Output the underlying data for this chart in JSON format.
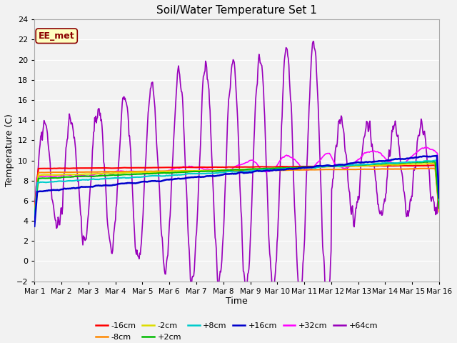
{
  "title": "Soil/Water Temperature Set 1",
  "xlabel": "Time",
  "ylabel": "Temperature (C)",
  "ylim": [
    -2,
    24
  ],
  "yticks": [
    -2,
    0,
    2,
    4,
    6,
    8,
    10,
    12,
    14,
    16,
    18,
    20,
    22,
    24
  ],
  "xtick_labels": [
    "Mar 1",
    "Mar 2",
    "Mar 3",
    "Mar 4",
    "Mar 5",
    "Mar 6",
    "Mar 7",
    "Mar 8",
    "Mar 9",
    "Mar 10",
    "Mar 11",
    "Mar 12",
    "Mar 13",
    "Mar 14",
    "Mar 15",
    "Mar 16"
  ],
  "annotation_text": "EE_met",
  "annotation_box_facecolor": "#FFFFC0",
  "annotation_border_color": "#8B0000",
  "fig_bg": "#F2F2F2",
  "plot_bg": "#F2F2F2",
  "grid_color": "#FFFFFF",
  "series": [
    {
      "label": "-16cm",
      "color": "#FF0000",
      "lw": 1.5,
      "zorder": 5
    },
    {
      "label": "-8cm",
      "color": "#FF8800",
      "lw": 1.5,
      "zorder": 5
    },
    {
      "label": "-2cm",
      "color": "#DDDD00",
      "lw": 1.5,
      "zorder": 5
    },
    {
      "label": "+2cm",
      "color": "#00BB00",
      "lw": 1.5,
      "zorder": 5
    },
    {
      "label": "+8cm",
      "color": "#00CCCC",
      "lw": 1.5,
      "zorder": 5
    },
    {
      "label": "+16cm",
      "color": "#0000CC",
      "lw": 1.8,
      "zorder": 5
    },
    {
      "label": "+32cm",
      "color": "#FF00FF",
      "lw": 1.2,
      "zorder": 4
    },
    {
      "label": "+64cm",
      "color": "#9900BB",
      "lw": 1.2,
      "zorder": 3
    }
  ],
  "legend_ncol_row1": 6,
  "legend_ncol_row2": 2
}
